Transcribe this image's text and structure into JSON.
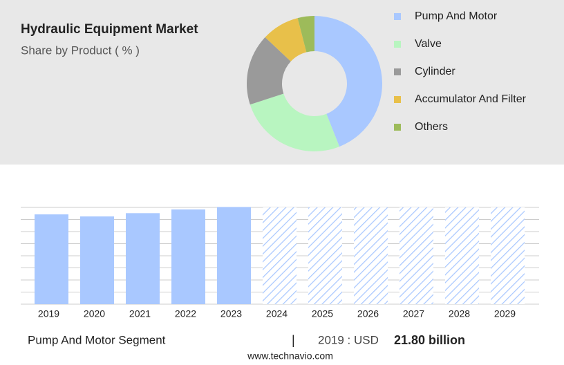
{
  "chart_data": [
    {
      "type": "pie",
      "title": "Hydraulic Equipment Market",
      "subtitle": "Share by Product ( % )",
      "categories": [
        "Pump And Motor",
        "Valve",
        "Cylinder",
        "Accumulator And Filter",
        "Others"
      ],
      "values": [
        44,
        26,
        17,
        9,
        4
      ],
      "colors": [
        "#a9c8ff",
        "#b8f5c0",
        "#9a9a9a",
        "#e8c04a",
        "#9dbb5a"
      ]
    },
    {
      "type": "bar",
      "categories": [
        "2019",
        "2020",
        "2021",
        "2022",
        "2023",
        "2024",
        "2025",
        "2026",
        "2027",
        "2028",
        "2029"
      ],
      "values": [
        21.8,
        21.3,
        22.1,
        23.0,
        23.6,
        null,
        null,
        null,
        null,
        null,
        null
      ],
      "color": "#a9c8ff",
      "ylim": [
        0,
        23.5
      ]
    }
  ],
  "footer": {
    "segment": "Pump And Motor Segment",
    "year_label": "2019 : USD",
    "value_label": "21.80 billion"
  },
  "source": "www.technavio.com"
}
